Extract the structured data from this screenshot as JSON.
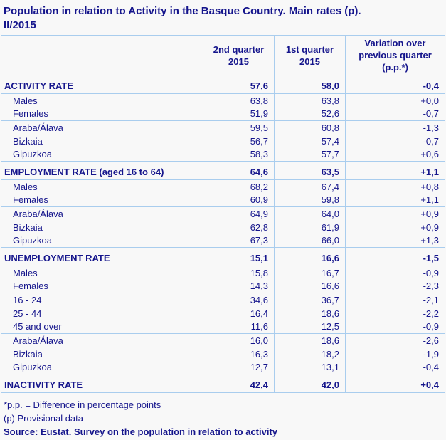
{
  "page": {
    "title_lines": [
      "Population in relation to Activity in the Basque Country. Main rates (p).",
      "II/2015"
    ]
  },
  "colors": {
    "text": "#15158c",
    "border": "#a9cdee",
    "background": "#f8f8f8"
  },
  "table": {
    "columns": [
      "",
      "2nd quarter 2015",
      "1st quarter 2015",
      "Variation over previous quarter (p.p.*)"
    ],
    "sections": [
      {
        "header": {
          "label": "ACTIVITY RATE",
          "q2": "57,6",
          "q1": "58,0",
          "variation": "-0,4"
        },
        "groups": [
          [
            {
              "label": "Males",
              "q2": "63,8",
              "q1": "63,8",
              "variation": "+0,0"
            },
            {
              "label": "Females",
              "q2": "51,9",
              "q1": "52,6",
              "variation": "-0,7"
            }
          ],
          [
            {
              "label": "Araba/Álava",
              "q2": "59,5",
              "q1": "60,8",
              "variation": "-1,3"
            },
            {
              "label": "Bizkaia",
              "q2": "56,7",
              "q1": "57,4",
              "variation": "-0,7"
            },
            {
              "label": "Gipuzkoa",
              "q2": "58,3",
              "q1": "57,7",
              "variation": "+0,6"
            }
          ]
        ]
      },
      {
        "header": {
          "label": "EMPLOYMENT RATE (aged 16 to 64)",
          "q2": "64,6",
          "q1": "63,5",
          "variation": "+1,1"
        },
        "groups": [
          [
            {
              "label": "Males",
              "q2": "68,2",
              "q1": "67,4",
              "variation": "+0,8"
            },
            {
              "label": "Females",
              "q2": "60,9",
              "q1": "59,8",
              "variation": "+1,1"
            }
          ],
          [
            {
              "label": "Araba/Álava",
              "q2": "64,9",
              "q1": "64,0",
              "variation": "+0,9"
            },
            {
              "label": "Bizkaia",
              "q2": "62,8",
              "q1": "61,9",
              "variation": "+0,9"
            },
            {
              "label": "Gipuzkoa",
              "q2": "67,3",
              "q1": "66,0",
              "variation": "+1,3"
            }
          ]
        ]
      },
      {
        "header": {
          "label": "UNEMPLOYMENT RATE",
          "q2": "15,1",
          "q1": "16,6",
          "variation": "-1,5"
        },
        "groups": [
          [
            {
              "label": "Males",
              "q2": "15,8",
              "q1": "16,7",
              "variation": "-0,9"
            },
            {
              "label": "Females",
              "q2": "14,3",
              "q1": "16,6",
              "variation": "-2,3"
            }
          ],
          [
            {
              "label": "16 - 24",
              "q2": "34,6",
              "q1": "36,7",
              "variation": "-2,1"
            },
            {
              "label": "25 - 44",
              "q2": "16,4",
              "q1": "18,6",
              "variation": "-2,2"
            },
            {
              "label": "45 and over",
              "q2": "11,6",
              "q1": "12,5",
              "variation": "-0,9"
            }
          ],
          [
            {
              "label": "Araba/Álava",
              "q2": "16,0",
              "q1": "18,6",
              "variation": "-2,6"
            },
            {
              "label": "Bizkaia",
              "q2": "16,3",
              "q1": "18,2",
              "variation": "-1,9"
            },
            {
              "label": "Gipuzkoa",
              "q2": "12,7",
              "q1": "13,1",
              "variation": "-0,4"
            }
          ]
        ]
      },
      {
        "header": {
          "label": "INACTIVITY RATE",
          "q2": "42,4",
          "q1": "42,0",
          "variation": "+0,4"
        },
        "groups": []
      }
    ]
  },
  "footnotes": [
    "*p.p. = Difference in percentage points",
    "(p) Provisional data"
  ],
  "source": "Source: Eustat. Survey on the population in relation to activity"
}
